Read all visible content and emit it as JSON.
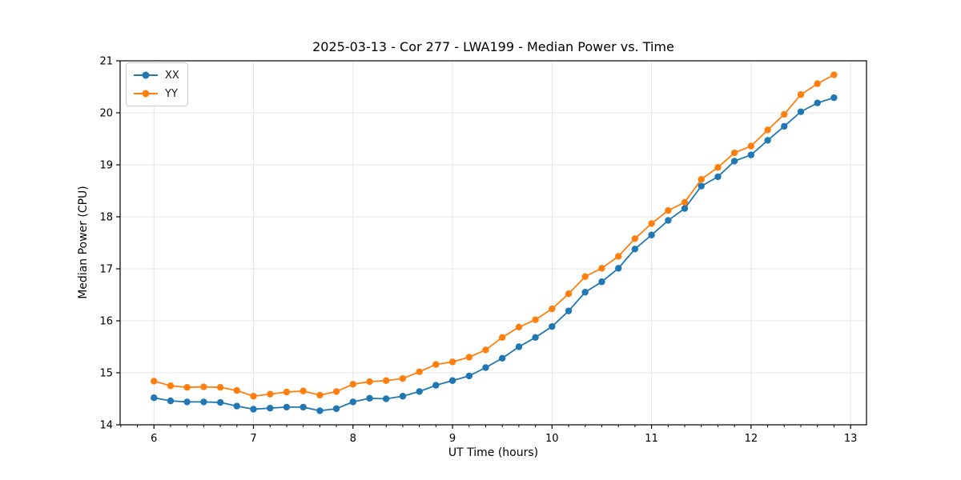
{
  "header": {
    "title": "2025-03-13 - Cor 277 - LWA199 - Median Power vs. Time"
  },
  "axes": {
    "xlabel": "UT Time (hours)",
    "ylabel": "Median Power (CPU)"
  },
  "legend": {
    "items": [
      {
        "label": "XX",
        "color": "#1f77b4"
      },
      {
        "label": "YY",
        "color": "#ff7f0e"
      }
    ]
  },
  "colors": {
    "series_xx": "#1f77b4",
    "series_yy": "#ff7f0e",
    "grid": "#e6e6e6",
    "spine": "#000000",
    "background": "#ffffff"
  },
  "chart_data": {
    "type": "line",
    "title": "2025-03-13 - Cor 277 - LWA199 - Median Power vs. Time",
    "xlabel": "UT Time (hours)",
    "ylabel": "Median Power (CPU)",
    "xlim": [
      5.66,
      13.16
    ],
    "ylim": [
      14,
      21
    ],
    "xticks": [
      6,
      7,
      8,
      9,
      10,
      11,
      12,
      13
    ],
    "yticks": [
      14,
      15,
      16,
      17,
      18,
      19,
      20,
      21
    ],
    "x_minor_step": 0.1666667,
    "grid": true,
    "legend_position": "upper-left",
    "marker": "circle",
    "x": [
      6.0,
      6.167,
      6.333,
      6.5,
      6.667,
      6.833,
      7.0,
      7.167,
      7.333,
      7.5,
      7.667,
      7.833,
      8.0,
      8.167,
      8.333,
      8.5,
      8.667,
      8.833,
      9.0,
      9.167,
      9.333,
      9.5,
      9.667,
      9.833,
      10.0,
      10.167,
      10.333,
      10.5,
      10.667,
      10.833,
      11.0,
      11.167,
      11.333,
      11.5,
      11.667,
      11.833,
      12.0,
      12.167,
      12.333,
      12.5,
      12.667,
      12.833
    ],
    "series": [
      {
        "name": "XX",
        "color": "#1f77b4",
        "values": [
          14.52,
          14.46,
          14.44,
          14.44,
          14.43,
          14.36,
          14.3,
          14.32,
          14.34,
          14.34,
          14.27,
          14.31,
          14.44,
          14.51,
          14.5,
          14.55,
          14.64,
          14.76,
          14.85,
          14.94,
          15.1,
          15.28,
          15.5,
          15.68,
          15.89,
          16.19,
          16.55,
          16.75,
          17.01,
          17.38,
          17.65,
          17.93,
          18.16,
          18.59,
          18.77,
          19.07,
          19.19,
          19.47,
          19.74,
          20.02,
          20.19,
          20.29
        ]
      },
      {
        "name": "YY",
        "color": "#ff7f0e",
        "values": [
          14.84,
          14.75,
          14.72,
          14.73,
          14.72,
          14.66,
          14.55,
          14.59,
          14.63,
          14.65,
          14.57,
          14.64,
          14.78,
          14.83,
          14.85,
          14.89,
          15.02,
          15.16,
          15.21,
          15.3,
          15.44,
          15.68,
          15.88,
          16.02,
          16.23,
          16.52,
          16.85,
          17.01,
          17.24,
          17.58,
          17.87,
          18.12,
          18.28,
          18.72,
          18.95,
          19.23,
          19.36,
          19.67,
          19.97,
          20.35,
          20.56,
          20.73
        ]
      }
    ]
  }
}
